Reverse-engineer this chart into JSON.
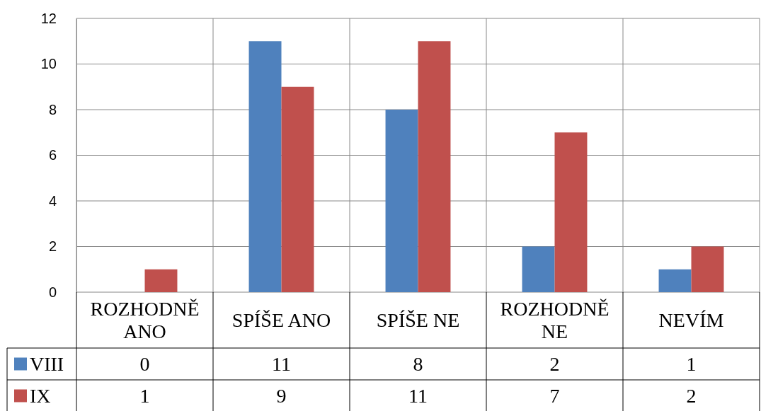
{
  "chart_data": {
    "type": "bar",
    "categories": [
      "ROZHODNĚ ANO",
      "SPÍŠE ANO",
      "SPÍŠE NE",
      "ROZHODNĚ NE",
      "NEVÍM"
    ],
    "series": [
      {
        "name": "VIII",
        "color": "#4f81bd",
        "values": [
          0,
          11,
          8,
          2,
          1
        ]
      },
      {
        "name": "IX",
        "color": "#c0504d",
        "values": [
          1,
          9,
          11,
          7,
          2
        ]
      }
    ],
    "ylim": [
      0,
      12
    ],
    "yticks": [
      0,
      2,
      4,
      6,
      8,
      10,
      12
    ],
    "grid": true,
    "legend": "bottom",
    "data_labels": true
  }
}
